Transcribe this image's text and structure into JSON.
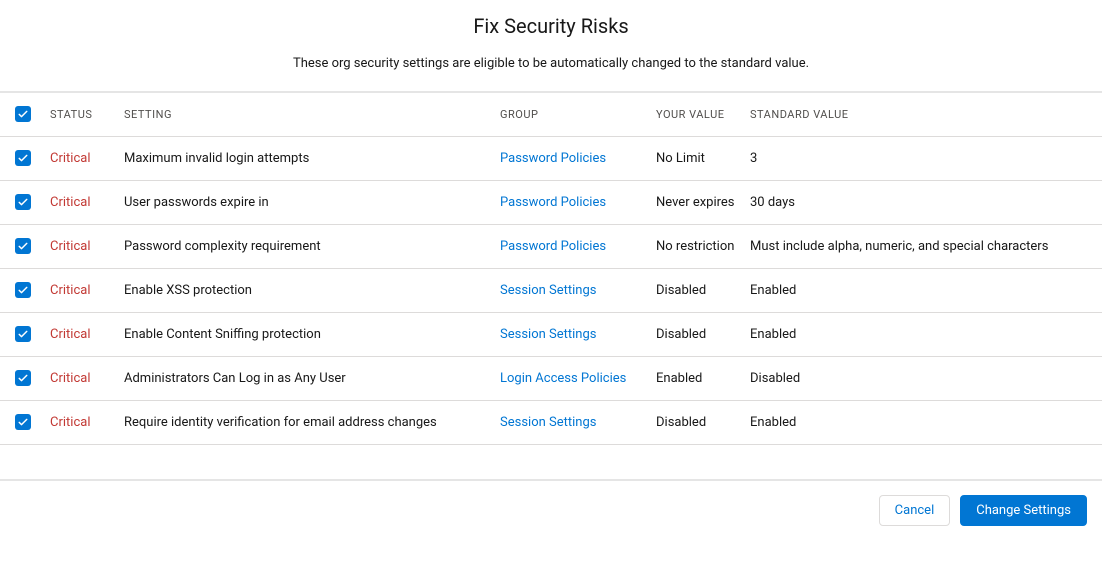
{
  "header": {
    "title": "Fix Security Risks",
    "subtitle": "These org security settings are eligible to be automatically changed to the standard value."
  },
  "columns": {
    "status": "STATUS",
    "setting": "SETTING",
    "group": "GROUP",
    "your_value": "YOUR VALUE",
    "standard_value": "STANDARD VALUE"
  },
  "colors": {
    "checkbox_bg": "#0176d3",
    "link": "#0176d3",
    "critical": "#c23934",
    "text": "#181818",
    "header_text": "#514f4d",
    "border": "#dddbda",
    "divider": "#e5e5e5",
    "btn_primary_bg": "#0176d3",
    "btn_primary_text": "#ffffff",
    "btn_secondary_bg": "#ffffff",
    "btn_secondary_text": "#0176d3"
  },
  "rows": [
    {
      "checked": true,
      "status": "Critical",
      "setting": "Maximum invalid login attempts",
      "group": "Password Policies",
      "your_value": "No Limit",
      "standard_value": "3"
    },
    {
      "checked": true,
      "status": "Critical",
      "setting": "User passwords expire in",
      "group": "Password Policies",
      "your_value": "Never expires",
      "standard_value": "30 days"
    },
    {
      "checked": true,
      "status": "Critical",
      "setting": "Password complexity requirement",
      "group": "Password Policies",
      "your_value": "No restriction",
      "standard_value": "Must include alpha, numeric, and special characters"
    },
    {
      "checked": true,
      "status": "Critical",
      "setting": "Enable XSS protection",
      "group": "Session Settings",
      "your_value": "Disabled",
      "standard_value": "Enabled"
    },
    {
      "checked": true,
      "status": "Critical",
      "setting": "Enable Content Sniffing protection",
      "group": "Session Settings",
      "your_value": "Disabled",
      "standard_value": "Enabled"
    },
    {
      "checked": true,
      "status": "Critical",
      "setting": "Administrators Can Log in as Any User",
      "group": "Login Access Policies",
      "your_value": "Enabled",
      "standard_value": "Disabled"
    },
    {
      "checked": true,
      "status": "Critical",
      "setting": "Require identity verification for email address changes",
      "group": "Session Settings",
      "your_value": "Disabled",
      "standard_value": "Enabled"
    }
  ],
  "footer": {
    "cancel": "Cancel",
    "change_settings": "Change Settings"
  }
}
